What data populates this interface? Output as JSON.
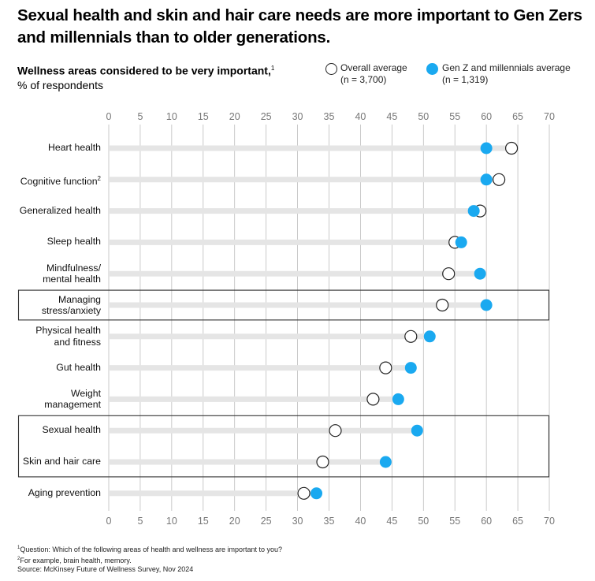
{
  "title": "Sexual health and skin and hair care needs are more important to Gen Zers and millennials than to older generations.",
  "subtitle_bold": "Wellness areas considered to be very important,",
  "subtitle_bold_sup": "1",
  "subtitle_unit": "% of respondents",
  "legend": {
    "overall_label": "Overall average",
    "overall_n": "(n = 3,700)",
    "genz_label": "Gen Z and millennials average",
    "genz_n": "(n = 1,319)"
  },
  "colors": {
    "genz": "#1aa9f0",
    "track": "#e5e5e5",
    "grid": "#bdbdbd",
    "box": "#333333"
  },
  "footnotes": {
    "note1_num": "1",
    "note1": "Question: Which of the following areas of health and wellness are important to you?",
    "note2_num": "2",
    "note2": "For example, brain health, memory.",
    "source": "Source: McKinsey Future of Wellness Survey, Nov 2024"
  },
  "chart_data": {
    "type": "dot-plot",
    "xlim": [
      0,
      70
    ],
    "x_ticks": [
      "0",
      "5",
      "10",
      "15",
      "20",
      "25",
      "30",
      "35",
      "40",
      "45",
      "50",
      "55",
      "60",
      "65",
      "70"
    ],
    "categories": [
      {
        "line1": "Heart health",
        "line2": "",
        "sup": ""
      },
      {
        "line1": "Cognitive function",
        "line2": "",
        "sup": "2"
      },
      {
        "line1": "Generalized health",
        "line2": "",
        "sup": ""
      },
      {
        "line1": "Sleep health",
        "line2": "",
        "sup": ""
      },
      {
        "line1": "Mindfulness/",
        "line2": "mental health",
        "sup": ""
      },
      {
        "line1": "Managing",
        "line2": "stress/anxiety",
        "sup": ""
      },
      {
        "line1": "Physical health",
        "line2": "and fitness",
        "sup": ""
      },
      {
        "line1": "Gut health",
        "line2": "",
        "sup": ""
      },
      {
        "line1": "Weight",
        "line2": "management",
        "sup": ""
      },
      {
        "line1": "Sexual health",
        "line2": "",
        "sup": ""
      },
      {
        "line1": "Skin and hair care",
        "line2": "",
        "sup": ""
      },
      {
        "line1": "Aging prevention",
        "line2": "",
        "sup": ""
      }
    ],
    "series": [
      {
        "name": "Overall average",
        "values": [
          64,
          62,
          59,
          55,
          54,
          53,
          48,
          44,
          42,
          36,
          34,
          31
        ]
      },
      {
        "name": "Gen Z and millennials average",
        "values": [
          60,
          60,
          58,
          56,
          59,
          60,
          51,
          48,
          46,
          49,
          44,
          33
        ]
      }
    ],
    "highlighted_groups": [
      [
        5
      ],
      [
        9,
        10
      ]
    ]
  }
}
